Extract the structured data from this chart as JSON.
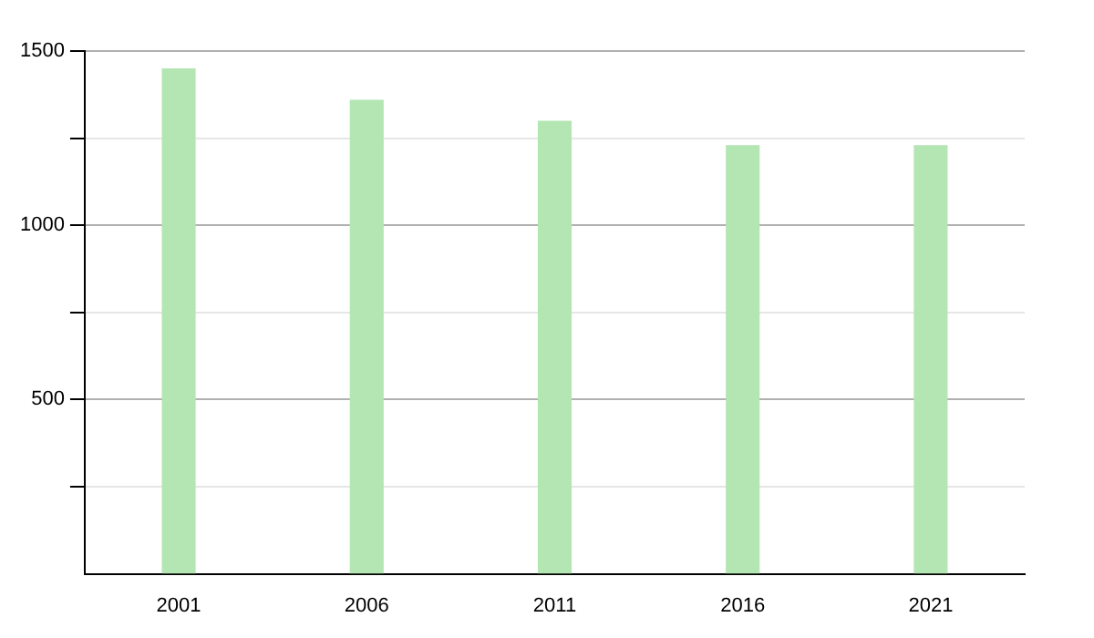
{
  "chart_data": {
    "type": "bar",
    "categories": [
      "2001",
      "2006",
      "2011",
      "2016",
      "2021"
    ],
    "values": [
      1450,
      1360,
      1300,
      1230,
      1230
    ],
    "color": "#b3e6b3",
    "ylim": [
      0,
      1500
    ],
    "yticks": [
      {
        "value": 250,
        "label": null
      },
      500,
      {
        "value": 750,
        "label": null
      },
      1000,
      {
        "value": 1250,
        "label": null
      },
      1500
    ],
    "grid": "y"
  }
}
